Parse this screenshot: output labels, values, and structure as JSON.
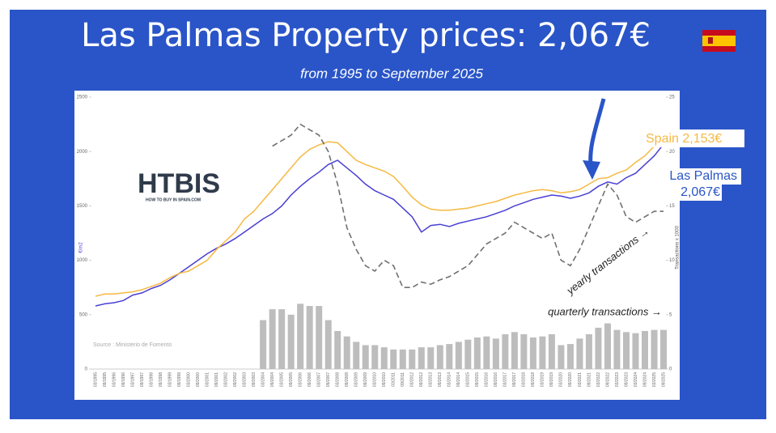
{
  "title": "Las Palmas Property prices: 2,067€",
  "subtitle": "from 1995 to September 2025",
  "logo": {
    "name": "HTBIS",
    "tagline": "HOW TO BUY IN SPAIN.COM"
  },
  "chart_data": {
    "type": "line",
    "source": "Source : Ministerio de Fomento",
    "y_label": "€/m2",
    "y2_label": "Transactions x 1000",
    "categories": [
      "03/1995",
      "09/1995",
      "03/1996",
      "09/1996",
      "03/1997",
      "09/1997",
      "03/1998",
      "09/1998",
      "03/1999",
      "09/1999",
      "03/2000",
      "09/2000",
      "03/2001",
      "09/2001",
      "03/2002",
      "09/2002",
      "03/2003",
      "09/2003",
      "03/2004",
      "09/2004",
      "03/2005",
      "09/2005",
      "03/2006",
      "09/2006",
      "03/2007",
      "09/2007",
      "03/2008",
      "09/2008",
      "03/2009",
      "09/2009",
      "03/2010",
      "09/2010",
      "03/2011",
      "09/2011",
      "03/2012",
      "09/2012",
      "03/2013",
      "09/2013",
      "03/2014",
      "09/2014",
      "03/2015",
      "09/2015",
      "03/2016",
      "09/2016",
      "03/2017",
      "09/2017",
      "03/2018",
      "09/2018",
      "03/2019",
      "09/2019",
      "03/2020",
      "09/2020",
      "03/2021",
      "09/2021",
      "03/2022",
      "09/2022",
      "03/2023",
      "09/2023",
      "03/2024",
      "09/2024",
      "03/2025",
      "09/2025"
    ],
    "ylim": [
      0,
      2500
    ],
    "yticks": [
      0,
      500,
      1000,
      1500,
      2000,
      2500
    ],
    "y2lim": [
      0,
      25
    ],
    "y2ticks": [
      0,
      5,
      10,
      15,
      20,
      25
    ],
    "series": [
      {
        "name": "Las Palmas",
        "end_label": "2,067€",
        "color": "#4a3fd2",
        "values": [
          580,
          600,
          610,
          630,
          680,
          700,
          740,
          770,
          820,
          880,
          940,
          1000,
          1060,
          1110,
          1150,
          1200,
          1260,
          1320,
          1380,
          1430,
          1500,
          1600,
          1680,
          1750,
          1810,
          1880,
          1920,
          1850,
          1780,
          1700,
          1640,
          1600,
          1560,
          1480,
          1400,
          1260,
          1320,
          1330,
          1310,
          1340,
          1360,
          1380,
          1400,
          1430,
          1460,
          1500,
          1530,
          1560,
          1580,
          1600,
          1590,
          1570,
          1590,
          1620,
          1680,
          1720,
          1700,
          1760,
          1800,
          1880,
          1960,
          2067
        ]
      },
      {
        "name": "Spain",
        "end_label": "2,153€",
        "color": "#f5b942",
        "values": [
          670,
          690,
          690,
          700,
          710,
          730,
          760,
          790,
          840,
          880,
          900,
          950,
          1000,
          1100,
          1180,
          1260,
          1380,
          1450,
          1550,
          1650,
          1750,
          1850,
          1950,
          2020,
          2060,
          2090,
          2080,
          2000,
          1920,
          1880,
          1850,
          1820,
          1770,
          1680,
          1580,
          1510,
          1470,
          1460,
          1460,
          1470,
          1480,
          1500,
          1520,
          1540,
          1570,
          1600,
          1620,
          1640,
          1650,
          1640,
          1620,
          1630,
          1650,
          1700,
          1750,
          1760,
          1800,
          1830,
          1900,
          1960,
          2050,
          2153
        ]
      },
      {
        "name": "yearly transactions →",
        "type": "line",
        "dashed": true,
        "axis": "y2",
        "color": "#707070",
        "values": [
          null,
          null,
          null,
          null,
          null,
          null,
          null,
          null,
          null,
          null,
          null,
          null,
          null,
          null,
          null,
          null,
          null,
          null,
          null,
          20.5,
          21,
          21.5,
          22.5,
          22,
          21.5,
          20,
          17,
          13,
          11,
          9.5,
          9,
          10,
          9.5,
          7.5,
          7.5,
          8,
          7.8,
          8.2,
          8.5,
          9,
          9.5,
          10.5,
          11.5,
          12,
          12.5,
          13.5,
          13,
          12.5,
          12,
          12.5,
          10,
          9.5,
          11,
          13,
          15,
          17,
          16,
          14,
          13.5,
          14,
          14.5,
          14.5
        ]
      },
      {
        "name": "quarterly transactions →",
        "type": "bar",
        "axis": "y2",
        "color": "#bdbdbd",
        "values": [
          null,
          null,
          null,
          null,
          null,
          null,
          null,
          null,
          null,
          null,
          null,
          null,
          null,
          null,
          null,
          null,
          null,
          null,
          4.5,
          5.5,
          5.5,
          5,
          6,
          5.8,
          5.8,
          4.5,
          3.5,
          3,
          2.5,
          2.2,
          2.2,
          2,
          1.8,
          1.8,
          1.8,
          2,
          2,
          2.2,
          2.3,
          2.5,
          2.7,
          2.9,
          3,
          2.8,
          3.2,
          3.4,
          3.2,
          2.9,
          3,
          3.2,
          2.2,
          2.3,
          2.8,
          3.2,
          3.8,
          4.2,
          3.6,
          3.4,
          3.3,
          3.5,
          3.6,
          3.6
        ]
      }
    ]
  }
}
